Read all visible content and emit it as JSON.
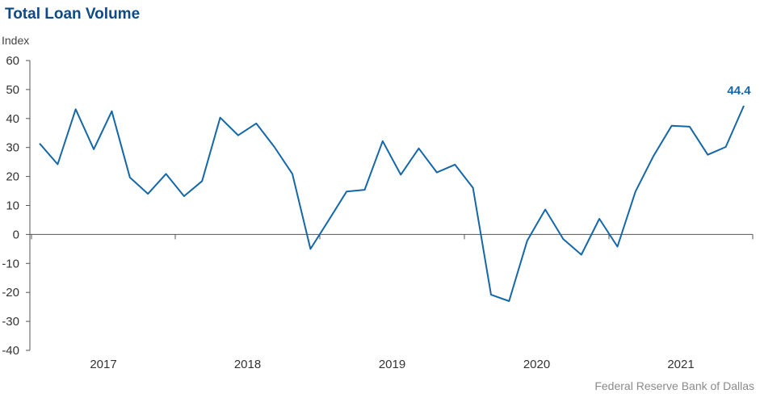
{
  "source": "Federal Reserve Bank of Dallas",
  "colors": {
    "series": "#1467a8",
    "title": "#0d4a86"
  },
  "chart_data": {
    "type": "line",
    "title": "Total Loan Volume",
    "ylabel": "Index",
    "xlabel": "",
    "ylim": [
      -40,
      60
    ],
    "yticks": [
      -40,
      -30,
      -20,
      -10,
      0,
      10,
      20,
      30,
      40,
      50,
      60
    ],
    "xlabels": [
      "2017",
      "2018",
      "2019",
      "2020",
      "2021"
    ],
    "grid": false,
    "series": [
      {
        "values": [
          31.4,
          24.2,
          43.2,
          29.4,
          42.5,
          19.7,
          14.0,
          20.9,
          13.2,
          18.4,
          40.3,
          34.2,
          38.3,
          30.2,
          20.9,
          -5.0,
          4.8,
          14.8,
          15.4,
          32.2,
          20.6,
          29.7,
          21.4,
          24.1,
          16.1,
          -20.8,
          -23.0,
          -2.2,
          8.6,
          -1.6,
          -7.0,
          5.4,
          -4.2,
          14.8,
          27.1,
          37.5,
          37.2,
          27.5,
          30.2,
          44.4
        ]
      }
    ],
    "annotations": [
      {
        "text": "44.4",
        "point_index": 39
      }
    ]
  }
}
